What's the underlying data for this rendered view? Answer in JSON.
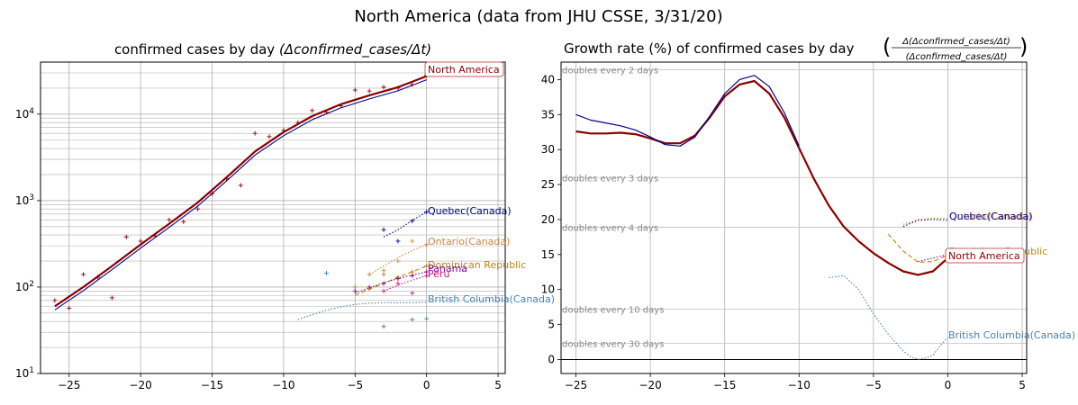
{
  "figure_title": "North America (data from JHU CSSE, 3/31/20)",
  "colors": {
    "north_america": "#8b0000",
    "quebec": "#00008b",
    "ontario": "#cd853f",
    "dominican": "#b8860b",
    "panama": "#8b008b",
    "peru": "#c71585",
    "bc": "#4682b4",
    "grid": "#b0b0b0",
    "axis": "#000000"
  },
  "chart_data": [
    {
      "type": "line",
      "title": "confirmed cases by day (Δconfirmed_cases/Δt)",
      "title_parts": {
        "prefix": "confirmed cases by day ",
        "math": "(Δconfirmed_cases/Δt)"
      },
      "yscale": "log",
      "xlim": [
        -27,
        5.5
      ],
      "ylim": [
        10,
        40000
      ],
      "xticks": [
        -25,
        -20,
        -15,
        -10,
        -5,
        0,
        5
      ],
      "xtick_labels": [
        "−25",
        "−20",
        "−15",
        "−10",
        "−5",
        "0",
        "5"
      ],
      "ytick_labels": [
        {
          "value": 10,
          "base": "10",
          "exp": "1"
        },
        {
          "value": 100,
          "base": "10",
          "exp": "2"
        },
        {
          "value": 1000,
          "base": "10",
          "exp": "3"
        },
        {
          "value": 10000,
          "base": "10",
          "exp": "4"
        }
      ],
      "series": [
        {
          "name": "North America",
          "color_key": "north_america",
          "style": "solid-thick",
          "x": [
            -26,
            -24,
            -22,
            -20,
            -18,
            -16,
            -14,
            -12,
            -10,
            -8,
            -6,
            -4,
            -2,
            0
          ],
          "values": [
            60,
            100,
            175,
            310,
            540,
            950,
            1850,
            3700,
            6200,
            9500,
            13000,
            16500,
            20500,
            27500
          ],
          "points_x": [
            -26,
            -25,
            -24,
            -23,
            -22,
            -21,
            -20,
            -19,
            -18,
            -17,
            -16,
            -15,
            -14,
            -13,
            -12,
            -11,
            -10,
            -9,
            -8,
            -7,
            -6,
            -5,
            -4,
            -3,
            -2,
            -1,
            0
          ],
          "points": [
            70,
            57,
            140,
            130,
            75,
            380,
            340,
            390,
            600,
            570,
            800,
            1200,
            1800,
            1500,
            6000,
            5500,
            6500,
            8000,
            11000,
            10500,
            12500,
            19000,
            18500,
            20500,
            20000,
            22000,
            28000
          ]
        },
        {
          "name": "Quebec(Canada)",
          "color_key": "quebec",
          "style": "dotted",
          "x": [
            -3,
            -2,
            -1,
            0
          ],
          "values": [
            380,
            460,
            590,
            740
          ],
          "points_x": [
            -3,
            -2,
            -1,
            0
          ],
          "points": [
            460,
            340,
            580,
            740
          ]
        },
        {
          "name": "Ontario(Canada)",
          "color_key": "ontario",
          "style": "dotted",
          "x": [
            -4,
            -3,
            -2,
            -1,
            0
          ],
          "values": [
            140,
            175,
            220,
            265,
            310
          ],
          "points_x": [
            -4,
            -3,
            -2,
            -1,
            0
          ],
          "points": [
            140,
            155,
            200,
            340,
            310
          ]
        },
        {
          "name": "Dominican Republic",
          "color_key": "dominican",
          "style": "dashed",
          "x": [
            -5,
            -4,
            -3,
            -2,
            -1,
            0
          ],
          "values": [
            80,
            95,
            110,
            130,
            150,
            175
          ],
          "points_x": [
            -5,
            -4,
            -3,
            -2,
            -1,
            0
          ],
          "points": [
            100,
            95,
            140,
            130,
            150,
            175
          ]
        },
        {
          "name": "Panama",
          "color_key": "panama",
          "style": "dotted",
          "x": [
            -5,
            -4,
            -3,
            -2,
            -1,
            0
          ],
          "values": [
            85,
            98,
            112,
            125,
            138,
            150
          ],
          "points_x": [
            -5,
            -4,
            -3,
            -2,
            -1,
            0
          ],
          "points": [
            90,
            100,
            110,
            125,
            135,
            150
          ]
        },
        {
          "name": "Peru",
          "color_key": "peru",
          "style": "dotted",
          "x": [
            -3,
            -2,
            -1,
            0
          ],
          "values": [
            90,
            105,
            120,
            135
          ],
          "points_x": [
            -3,
            -2,
            -1,
            0
          ],
          "points": [
            90,
            110,
            85,
            135
          ]
        },
        {
          "name": "British Columbia(Canada)",
          "color_key": "bc",
          "style": "dotted",
          "x": [
            -9,
            -8,
            -7,
            -6,
            -5,
            -4,
            -3,
            -2,
            -1,
            0
          ],
          "values": [
            42,
            48,
            54,
            59,
            63,
            65,
            66,
            66,
            66,
            67
          ],
          "points_x": [
            -7,
            -3,
            -1,
            0
          ],
          "points": [
            145,
            35,
            42,
            43
          ]
        }
      ]
    },
    {
      "type": "line",
      "title": "Growth rate (%) of confirmed cases by day",
      "title_frac_num": "Δ(Δconfirmed_cases/Δt)",
      "title_frac_den": "(Δconfirmed_cases/Δt)",
      "xlim": [
        -26,
        5.3
      ],
      "ylim": [
        -2,
        42.5
      ],
      "xticks": [
        -25,
        -20,
        -15,
        -10,
        -5,
        0,
        5
      ],
      "xtick_labels": [
        "−25",
        "−20",
        "−15",
        "−10",
        "−5",
        "0",
        "5"
      ],
      "yticks": [
        0,
        5,
        10,
        15,
        20,
        25,
        30,
        35,
        40
      ],
      "ytick_labels": [
        "0",
        "5",
        "10",
        "15",
        "20",
        "25",
        "30",
        "35",
        "40"
      ],
      "doubling_lines": [
        {
          "value": 41.4,
          "label": "doubles every 2 days"
        },
        {
          "value": 26.0,
          "label": "doubles every 3 days"
        },
        {
          "value": 18.9,
          "label": "doubles every 4 days"
        },
        {
          "value": 7.2,
          "label": "doubles every 10 days"
        },
        {
          "value": 2.3,
          "label": "doubles every 30 days"
        }
      ],
      "series": [
        {
          "name": "North America",
          "color_key": "north_america",
          "style": "solid-thick",
          "x": [
            -25,
            -24,
            -23,
            -22,
            -21,
            -20,
            -19,
            -18,
            -17,
            -16,
            -15,
            -14,
            -13,
            -12,
            -11,
            -10,
            -9,
            -8,
            -7,
            -6,
            -5,
            -4,
            -3,
            -2,
            -1,
            0
          ],
          "values": [
            32.6,
            32.3,
            32.3,
            32.4,
            32.2,
            31.6,
            30.9,
            30.9,
            32.0,
            34.6,
            37.6,
            39.3,
            39.8,
            38.0,
            34.6,
            30.2,
            25.8,
            22.0,
            19.0,
            16.9,
            15.2,
            13.8,
            12.6,
            12.1,
            12.6,
            14.5
          ]
        },
        {
          "name": "Quebec(Canada)",
          "color_key": "quebec",
          "style": "solid-thin",
          "x": [
            -25,
            -24,
            -23,
            -22,
            -21,
            -20,
            -19,
            -18,
            -17,
            -16,
            -15,
            -14,
            -13,
            -12,
            -11,
            -10
          ],
          "values": [
            35.0,
            34.2,
            33.8,
            33.4,
            32.8,
            31.8,
            30.7,
            30.5,
            31.8,
            34.8,
            38.0,
            40.0,
            40.6,
            39.0,
            35.3,
            30.5
          ]
        },
        {
          "name": "Quebec(Canada)",
          "color_key": "quebec",
          "style": "dotted",
          "x": [
            -3,
            -2,
            -1,
            0
          ],
          "values": [
            19.0,
            19.9,
            20.0,
            19.9
          ]
        },
        {
          "name": "Ontario(Canada)",
          "color_key": "ontario",
          "style": "dotted",
          "x": [
            -3,
            -2,
            -1,
            0
          ],
          "values": [
            19.3,
            20.0,
            20.2,
            20.2
          ]
        },
        {
          "name": "Dominican Republic",
          "color_key": "dominican",
          "style": "dashed",
          "x": [
            -4,
            -3,
            -2,
            -1,
            0
          ],
          "values": [
            17.9,
            15.5,
            13.9,
            14.0,
            14.9
          ]
        },
        {
          "name": "Panama",
          "color_key": "panama",
          "style": "dotted",
          "x": [
            -2,
            -1,
            0
          ],
          "values": [
            14.0,
            14.5,
            15.0
          ]
        },
        {
          "name": "British Columbia(Canada)",
          "color_key": "bc",
          "style": "dotted",
          "x": [
            -8,
            -7,
            -6,
            -5,
            -4,
            -3,
            -2.5,
            -2,
            -1.5,
            -1,
            -0.5,
            0
          ],
          "values": [
            11.7,
            12.0,
            10.0,
            6.5,
            3.6,
            1.2,
            0.4,
            0.0,
            0.2,
            0.6,
            2.0,
            3.2
          ]
        }
      ]
    }
  ],
  "labels_left": {
    "north_america": "North America",
    "quebec": "Quebec(Canada)",
    "ontario": "Ontario(Canada)",
    "dominican": "Dominican Republic",
    "panama": "Panama",
    "peru": "Peru",
    "bc": "British Columbia(Canada)"
  },
  "labels_right": {
    "quebec": "Quebec(Canada)",
    "ontario": "Ontario(Canada)",
    "dominican": "Dominican Republic",
    "north_america": "North America",
    "bc": "British Columbia(Canada)"
  }
}
